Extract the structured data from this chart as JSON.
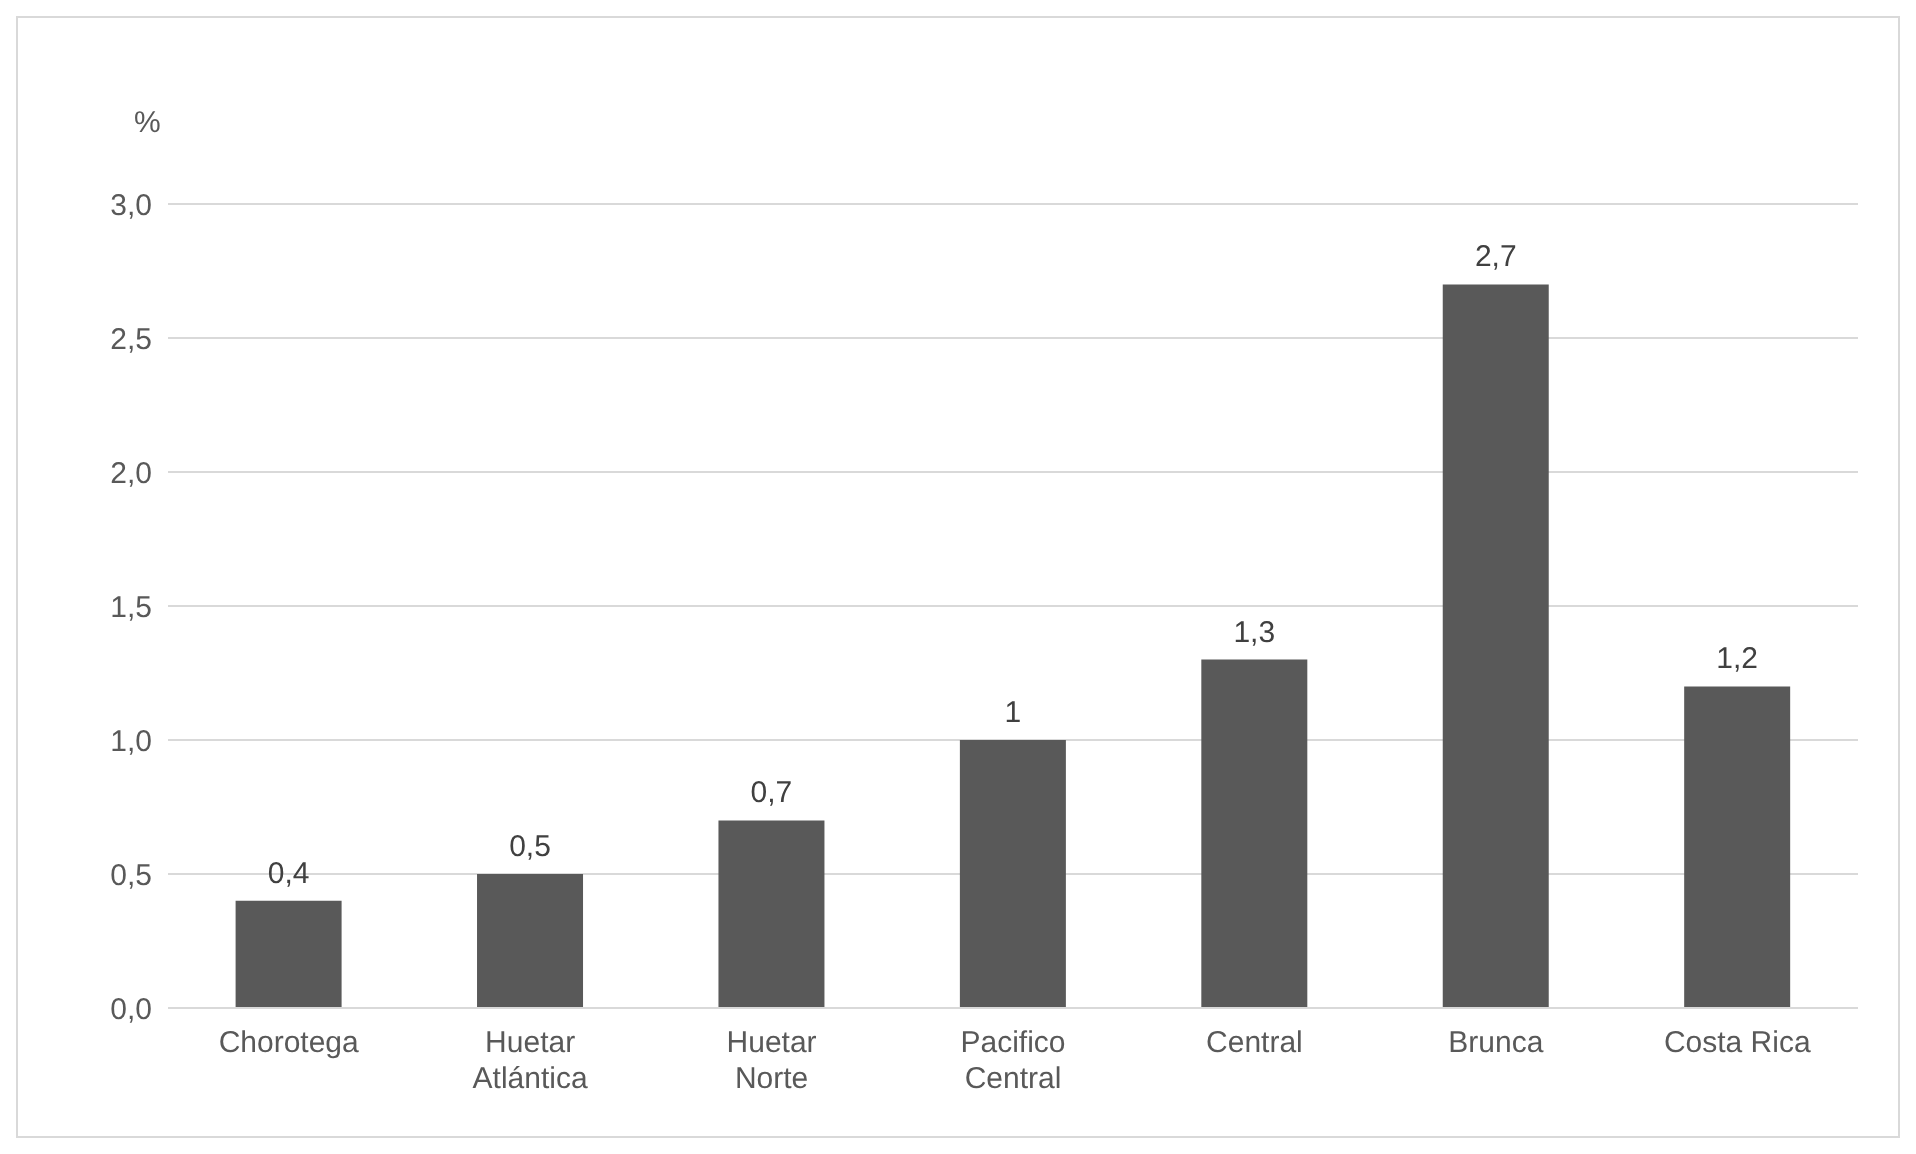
{
  "chart_data": {
    "type": "bar",
    "ylabel": "%",
    "categories": [
      "Chorotega",
      "Huetar Atlántica",
      "Huetar Norte",
      "Pacifico Central",
      "Central",
      "Brunca",
      "Costa Rica"
    ],
    "values": [
      0.4,
      0.5,
      0.7,
      1,
      1.3,
      2.7,
      1.2
    ],
    "value_labels": [
      "0,4",
      "0,5",
      "0,7",
      "1",
      "1,3",
      "2,7",
      "1,2"
    ],
    "color": "#595959",
    "ylim": [
      0,
      3
    ],
    "yticks": [
      {
        "value": 0,
        "label": "0,0"
      },
      {
        "value": 0.5,
        "label": "0,5"
      },
      {
        "value": 1,
        "label": "1,0"
      },
      {
        "value": 1.5,
        "label": "1,5"
      },
      {
        "value": 2,
        "label": "2,0"
      },
      {
        "value": 2.5,
        "label": "2,5"
      },
      {
        "value": 3,
        "label": "3,0"
      }
    ],
    "grid": "y",
    "legend": false
  }
}
